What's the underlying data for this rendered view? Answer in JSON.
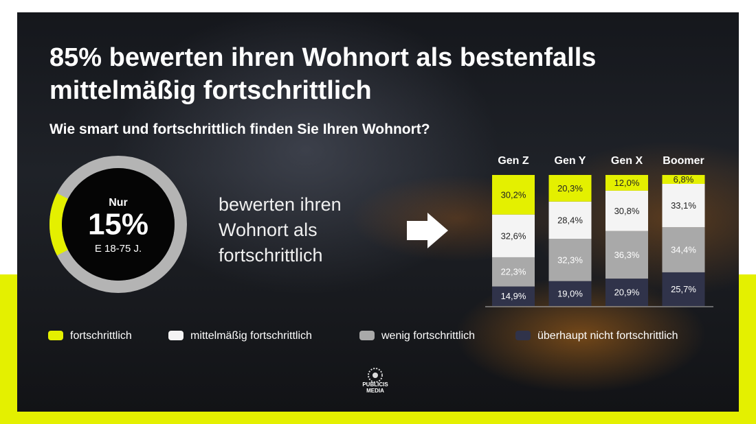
{
  "header": {
    "title": "85% bewerten ihren Wohnort als bestenfalls mittelmäßig fortschrittlich",
    "subtitle": "Wie smart und fortschrittlich finden Sie Ihren Wohnort?"
  },
  "chart_data": [
    {
      "type": "donut",
      "prefix": "Nur",
      "values": [
        15
      ],
      "value_labels": [
        "15%"
      ],
      "note": "E 18-75 J.",
      "color": "#e4f000",
      "caption": "bewerten ihren Wohnort als fortschrittlich"
    },
    {
      "type": "stacked-bar",
      "categories": [
        "Gen Z",
        "Gen Y",
        "Gen X",
        "Boomer"
      ],
      "series": [
        {
          "name": "fortschrittlich",
          "color": "#e4f000",
          "values": [
            30.2,
            20.3,
            12.0,
            6.8
          ],
          "value_labels": [
            "30,2%",
            "20,3%",
            "12,0%",
            "6,8%"
          ]
        },
        {
          "name": "mittelmäßig fortschrittlich",
          "color": "#f4f4f4",
          "values": [
            32.6,
            28.4,
            30.8,
            33.1
          ],
          "value_labels": [
            "32,6%",
            "28,4%",
            "30,8%",
            "33,1%"
          ]
        },
        {
          "name": "wenig fortschrittlich",
          "color": "#a9a9a9",
          "values": [
            22.3,
            32.3,
            36.3,
            34.4
          ],
          "value_labels": [
            "22,3%",
            "32,3%",
            "36,3%",
            "34,4%"
          ]
        },
        {
          "name": "überhaupt nicht fortschrittlich",
          "color": "#30334a",
          "values": [
            14.9,
            19.0,
            20.9,
            25.7
          ],
          "value_labels": [
            "14,9%",
            "19,0%",
            "20,9%",
            "25,7%"
          ]
        }
      ]
    }
  ],
  "logo": "PUBLICIS MEDIA"
}
